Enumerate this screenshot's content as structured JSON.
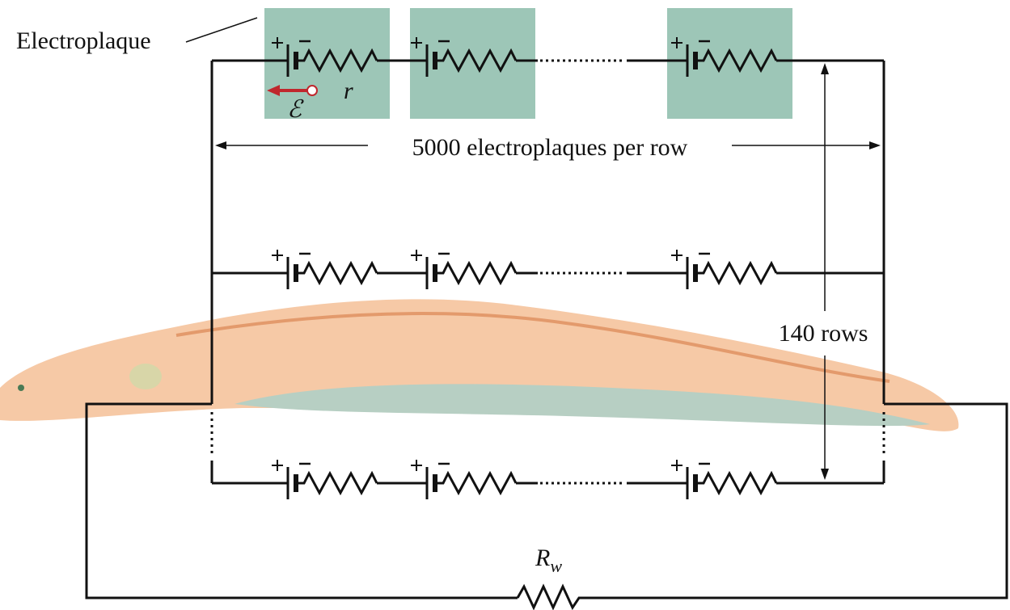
{
  "labels": {
    "electroplaque": "Electroplaque",
    "per_row": "5000 electroplaques per row",
    "rows": "140 rows",
    "internal_resistance": "r",
    "emf": "ℰ",
    "external_resistance": "R",
    "external_resistance_subscript": "w"
  }
}
